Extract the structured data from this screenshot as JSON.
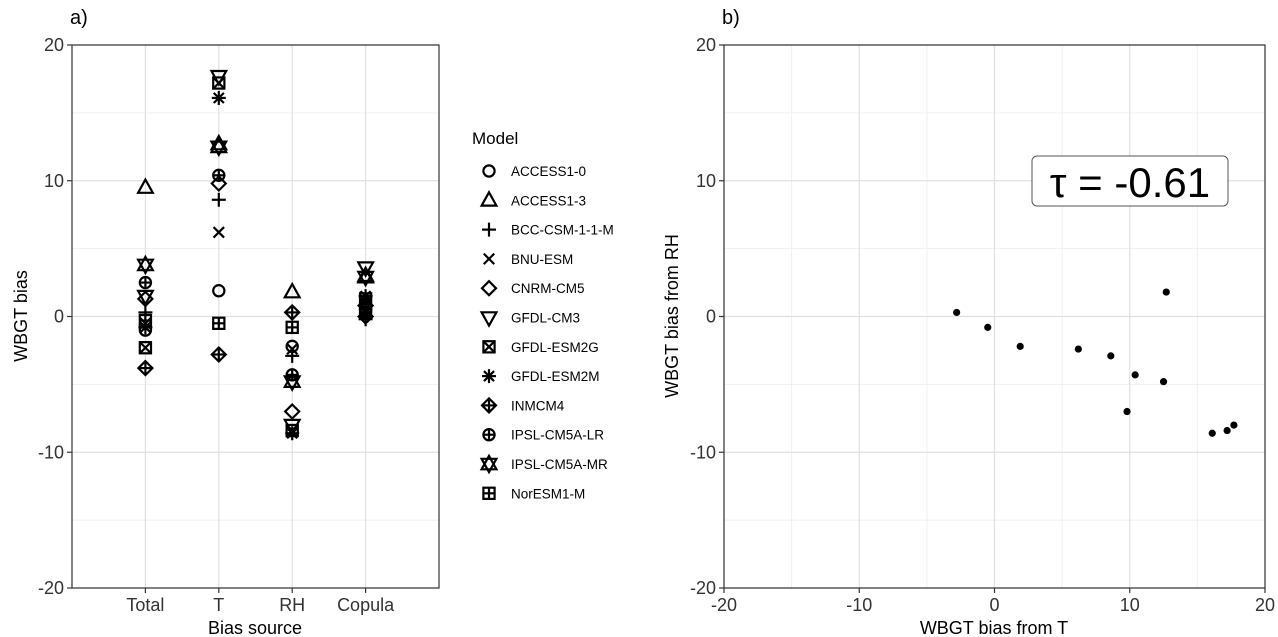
{
  "chart_data": [
    {
      "panel_label": "a)",
      "type": "scatter",
      "xlabel": "Bias source",
      "ylabel": "WBGT bias",
      "categories": [
        "Total",
        "T",
        "RH",
        "Copula"
      ],
      "ylim": [
        -20,
        20
      ],
      "yticks": [
        -20,
        -10,
        0,
        10,
        20
      ],
      "grid": true,
      "legend": {
        "title": "Model",
        "placement": "right",
        "entries": [
          {
            "name": "ACCESS1-0",
            "symbol": "circle-open"
          },
          {
            "name": "ACCESS1-3",
            "symbol": "triangle-open"
          },
          {
            "name": "BCC-CSM-1-1-M",
            "symbol": "plus"
          },
          {
            "name": "BNU-ESM",
            "symbol": "cross"
          },
          {
            "name": "CNRM-CM5",
            "symbol": "diamond-open"
          },
          {
            "name": "GFDL-CM3",
            "symbol": "triangle-down-open"
          },
          {
            "name": "GFDL-ESM2G",
            "symbol": "square-cross"
          },
          {
            "name": "GFDL-ESM2M",
            "symbol": "asterisk"
          },
          {
            "name": "INMCM4",
            "symbol": "diamond-plus"
          },
          {
            "name": "IPSL-CM5A-LR",
            "symbol": "circle-plus"
          },
          {
            "name": "IPSL-CM5A-MR",
            "symbol": "star-of-david"
          },
          {
            "name": "NorESM1-M",
            "symbol": "square-plus"
          }
        ]
      },
      "series": [
        {
          "name": "ACCESS1-0",
          "values": [
            -1.0,
            1.9,
            -2.2,
            0.5
          ]
        },
        {
          "name": "ACCESS1-3",
          "values": [
            9.5,
            12.7,
            1.8,
            3.0
          ]
        },
        {
          "name": "BCC-CSM-1-1-M",
          "values": [
            0.3,
            8.6,
            -2.9,
            -0.2
          ]
        },
        {
          "name": "BNU-ESM",
          "values": [
            -0.5,
            6.2,
            -2.4,
            1.2
          ]
        },
        {
          "name": "CNRM-CM5",
          "values": [
            1.3,
            9.8,
            -7.0,
            0.8
          ]
        },
        {
          "name": "GFDL-CM3",
          "values": [
            1.5,
            17.7,
            -8.0,
            3.6
          ]
        },
        {
          "name": "GFDL-ESM2G",
          "values": [
            -2.3,
            17.2,
            -8.4,
            0.3
          ]
        },
        {
          "name": "GFDL-ESM2M",
          "values": [
            -0.8,
            16.1,
            -8.6,
            1.5
          ]
        },
        {
          "name": "INMCM4",
          "values": [
            -3.8,
            -2.8,
            0.3,
            0.0
          ]
        },
        {
          "name": "IPSL-CM5A-LR",
          "values": [
            2.5,
            10.4,
            -4.3,
            0.6
          ]
        },
        {
          "name": "IPSL-CM5A-MR",
          "values": [
            3.8,
            12.5,
            -4.8,
            2.9
          ]
        },
        {
          "name": "NorESM1-M",
          "values": [
            -0.3,
            -0.5,
            -0.8,
            1.3
          ]
        }
      ]
    },
    {
      "panel_label": "b)",
      "type": "scatter",
      "xlabel": "WBGT bias from T",
      "ylabel": "WBGT bias from RH",
      "xlim": [
        -20,
        20
      ],
      "ylim": [
        -20,
        20
      ],
      "xticks": [
        -20,
        -10,
        0,
        10,
        20
      ],
      "yticks": [
        -20,
        -10,
        0,
        10,
        20
      ],
      "grid": true,
      "annotation": "τ = -0.61",
      "points": [
        {
          "x": -2.8,
          "y": 0.3
        },
        {
          "x": -0.5,
          "y": -0.8
        },
        {
          "x": 1.9,
          "y": -2.2
        },
        {
          "x": 6.2,
          "y": -2.4
        },
        {
          "x": 8.6,
          "y": -2.9
        },
        {
          "x": 9.8,
          "y": -7.0
        },
        {
          "x": 10.4,
          "y": -4.3
        },
        {
          "x": 12.5,
          "y": -4.8
        },
        {
          "x": 12.7,
          "y": 1.8
        },
        {
          "x": 16.1,
          "y": -8.6
        },
        {
          "x": 17.2,
          "y": -8.4
        },
        {
          "x": 17.7,
          "y": -8.0
        }
      ]
    }
  ]
}
